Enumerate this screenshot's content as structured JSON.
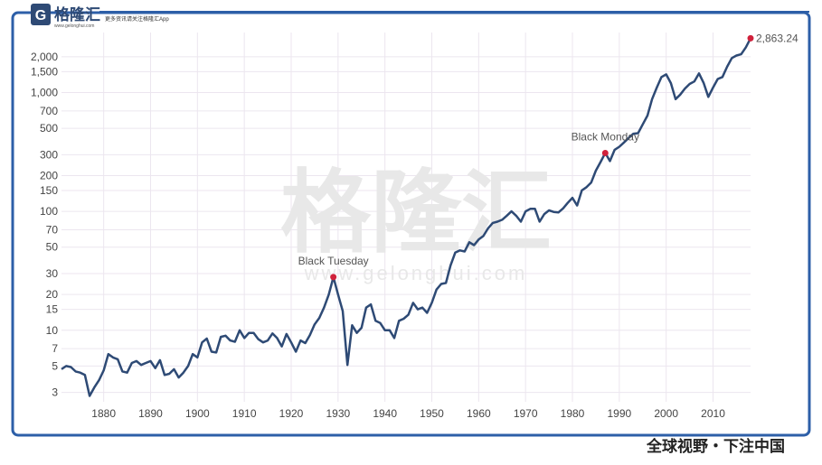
{
  "header": {
    "logo_text": "格隆汇",
    "logo_url": "www.gelonghui.com",
    "tagline": "更多资讯请关注格隆汇App"
  },
  "watermark": {
    "text": "格隆汇",
    "url": "www.gelonghui.com"
  },
  "footer": "全球视野・下注中国",
  "chart_data": {
    "type": "line",
    "color": "#2e4a75",
    "log_y": true,
    "grid": true,
    "xlim": [
      1871,
      2018
    ],
    "xticks": [
      1880,
      1890,
      1900,
      1910,
      1920,
      1930,
      1940,
      1950,
      1960,
      1970,
      1980,
      1990,
      2000,
      2010
    ],
    "ylim": [
      2.5,
      3200
    ],
    "yticks": [
      3,
      5,
      7,
      10,
      15,
      20,
      30,
      50,
      70,
      100,
      150,
      200,
      300,
      500,
      700,
      {
        "value": 1000,
        "label": "1,000"
      },
      {
        "value": 1500,
        "label": "1,500"
      },
      {
        "value": 2000,
        "label": "2,000"
      }
    ],
    "x": [
      1871,
      1872,
      1873,
      1874,
      1875,
      1876,
      1877,
      1878,
      1879,
      1880,
      1881,
      1882,
      1883,
      1884,
      1885,
      1886,
      1887,
      1888,
      1889,
      1890,
      1891,
      1892,
      1893,
      1894,
      1895,
      1896,
      1897,
      1898,
      1899,
      1900,
      1901,
      1902,
      1903,
      1904,
      1905,
      1906,
      1907,
      1908,
      1909,
      1910,
      1911,
      1912,
      1913,
      1914,
      1915,
      1916,
      1917,
      1918,
      1919,
      1920,
      1921,
      1922,
      1923,
      1924,
      1925,
      1926,
      1927,
      1928,
      1929,
      1930,
      1931,
      1932,
      1933,
      1934,
      1935,
      1936,
      1937,
      1938,
      1939,
      1940,
      1941,
      1942,
      1943,
      1944,
      1945,
      1946,
      1947,
      1948,
      1949,
      1950,
      1951,
      1952,
      1953,
      1954,
      1955,
      1956,
      1957,
      1958,
      1959,
      1960,
      1961,
      1962,
      1963,
      1964,
      1965,
      1966,
      1967,
      1968,
      1969,
      1970,
      1971,
      1972,
      1973,
      1974,
      1975,
      1976,
      1977,
      1978,
      1979,
      1980,
      1981,
      1982,
      1983,
      1984,
      1985,
      1986,
      1987,
      1988,
      1989,
      1990,
      1991,
      1992,
      1993,
      1994,
      1995,
      1996,
      1997,
      1998,
      1999,
      2000,
      2001,
      2002,
      2003,
      2004,
      2005,
      2006,
      2007,
      2008,
      2009,
      2010,
      2011,
      2012,
      2013,
      2014,
      2015,
      2016,
      2017,
      2018
    ],
    "values": [
      4.7,
      5.0,
      4.9,
      4.5,
      4.4,
      4.2,
      2.8,
      3.3,
      3.8,
      4.6,
      6.3,
      5.9,
      5.7,
      4.5,
      4.4,
      5.3,
      5.5,
      5.1,
      5.3,
      5.5,
      4.8,
      5.6,
      4.2,
      4.3,
      4.7,
      4.0,
      4.4,
      5.0,
      6.3,
      5.9,
      7.9,
      8.5,
      6.6,
      6.5,
      8.8,
      9.0,
      8.2,
      8.0,
      10.0,
      8.6,
      9.5,
      9.5,
      8.4,
      7.9,
      8.2,
      9.4,
      8.6,
      7.3,
      9.3,
      7.9,
      6.6,
      8.2,
      7.8,
      9.1,
      11.2,
      12.7,
      15.5,
      19.9,
      28,
      20,
      14.5,
      5.1,
      11,
      9.5,
      10.5,
      15.5,
      16.5,
      12,
      11.5,
      10,
      10,
      8.6,
      12,
      12.5,
      13.5,
      17,
      15,
      15.5,
      14,
      17,
      22,
      24.5,
      25,
      35,
      45,
      47,
      46,
      55,
      52,
      58,
      62,
      72,
      80,
      82,
      85,
      92,
      100,
      92,
      82,
      100,
      105,
      105,
      82,
      95,
      102,
      99,
      98,
      106,
      118,
      130,
      112,
      150,
      160,
      175,
      220,
      260,
      310,
      265,
      330,
      350,
      380,
      415,
      450,
      455,
      540,
      640,
      880,
      1100,
      1350,
      1420,
      1200,
      880,
      960,
      1080,
      1180,
      1240,
      1450,
      1200,
      920,
      1100,
      1300,
      1350,
      1650,
      1950,
      2050,
      2100,
      2400,
      2863.24
    ],
    "last_value_label": "2,863.24",
    "annotations": [
      {
        "text": "Black Tuesday",
        "x": 1929,
        "y": 28
      },
      {
        "text": "Black Monday",
        "x": 1987,
        "y": 310
      }
    ]
  }
}
